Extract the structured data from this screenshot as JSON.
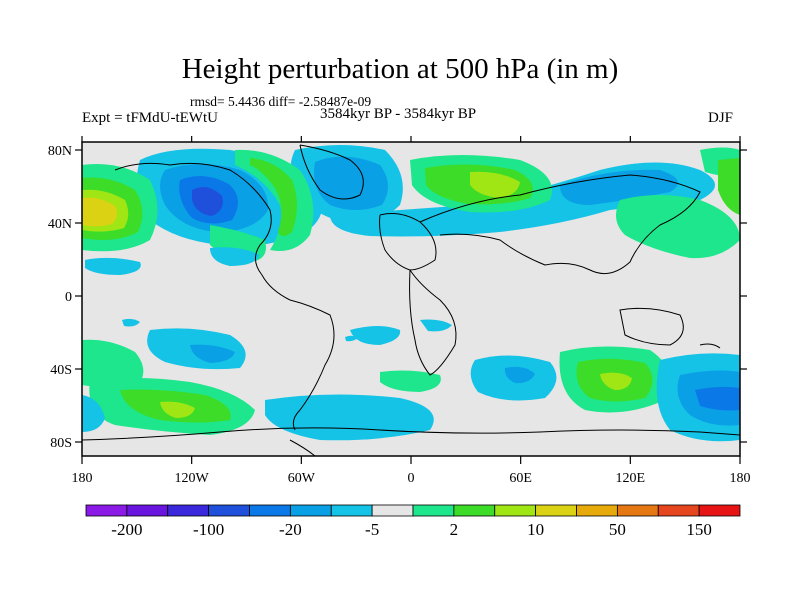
{
  "header": {
    "title": "Height perturbation at 500 hPa (in m)",
    "stats": "rmsd= 5.4436 diff= -2.58487e-09",
    "experiment": "Expt = tFMdU-tEWtU",
    "period": "3584kyr BP - 3584kyr BP",
    "season": "DJF"
  },
  "map": {
    "lon_ticks": [
      "180",
      "120W",
      "60W",
      "0",
      "60E",
      "120E",
      "180"
    ],
    "lat_ticks": [
      "80N",
      "40N",
      "0",
      "40S",
      "80S"
    ],
    "background_color": "#e6e6e6"
  },
  "colorbar": {
    "colors": [
      "#8c1ae6",
      "#6a14e0",
      "#3c28dc",
      "#1e50dc",
      "#0a78e6",
      "#0aa0e6",
      "#14c3e6",
      "#e6e6e6",
      "#1ee68c",
      "#3cdc28",
      "#a0e614",
      "#dcd214",
      "#e6aa0a",
      "#e67814",
      "#e6461e",
      "#e61414"
    ],
    "labels": [
      "-200",
      "-100",
      "-20",
      "-5",
      "2",
      "10",
      "50",
      "150"
    ]
  }
}
